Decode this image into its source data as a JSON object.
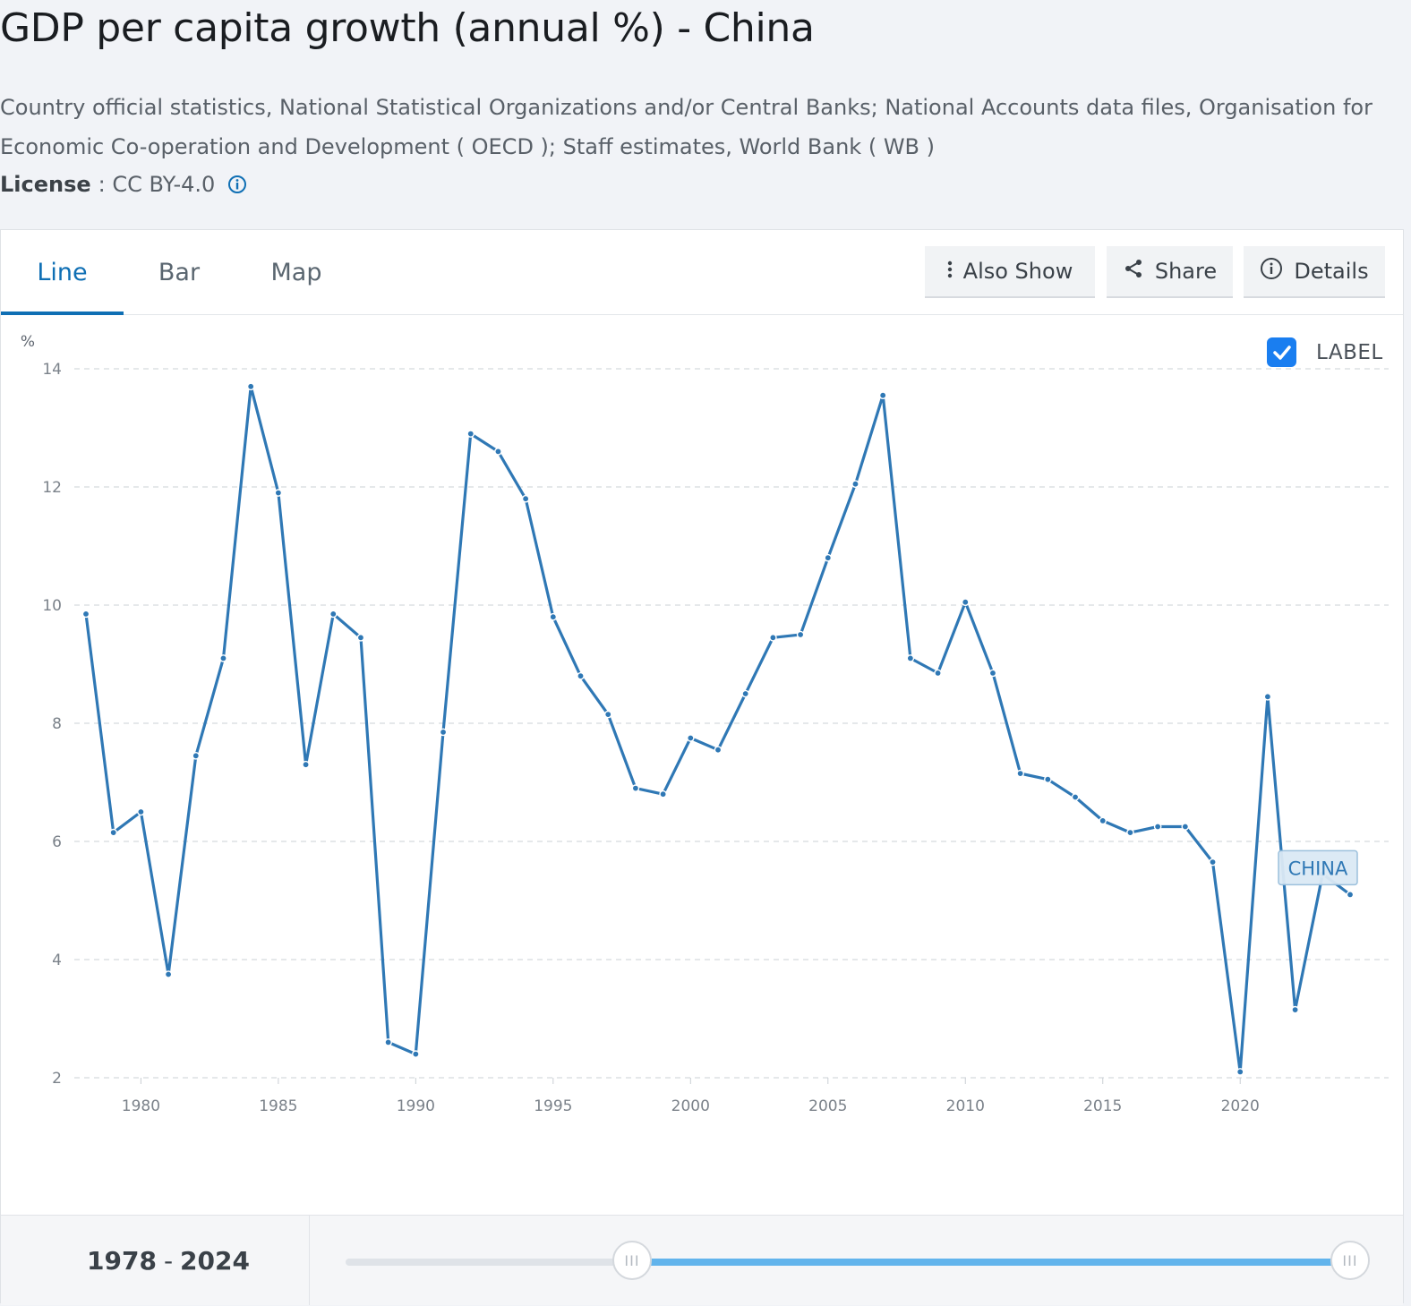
{
  "page": {
    "title": "GDP per capita growth (annual %) - China",
    "source": "Country official statistics, National Statistical Organizations and/or Central Banks; National Accounts data files, Organisation for Economic Co-operation and Development ( OECD ); Staff estimates, World Bank ( WB )",
    "license_label": "License",
    "license_value": ": CC BY-4.0"
  },
  "tabs": [
    {
      "label": "Line",
      "active": true
    },
    {
      "label": "Bar",
      "active": false
    },
    {
      "label": "Map",
      "active": false
    }
  ],
  "toolbar": {
    "also_show": "Also Show",
    "share": "Share",
    "details": "Details"
  },
  "legend": {
    "label_toggle": "LABEL",
    "checked": true,
    "series_tag": "CHINA"
  },
  "range": {
    "start": "1978",
    "separator": "-",
    "end": "2024"
  },
  "colors": {
    "line": "#2f78b5",
    "accent": "#0f6fb4",
    "checkbox": "#1a7ef0",
    "slider_fill": "#62b4ec"
  },
  "chart_data": {
    "type": "line",
    "title": "GDP per capita growth (annual %) - China",
    "ylabel": "%",
    "xlabel": "",
    "ylim": [
      2,
      14
    ],
    "xlim": [
      1978,
      2024
    ],
    "yticks": [
      2,
      4,
      6,
      8,
      10,
      12,
      14
    ],
    "xticks": [
      1980,
      1985,
      1990,
      1995,
      2000,
      2005,
      2010,
      2015,
      2020
    ],
    "grid": true,
    "series": [
      {
        "name": "CHINA",
        "x": [
          1978,
          1979,
          1980,
          1981,
          1982,
          1983,
          1984,
          1985,
          1986,
          1987,
          1988,
          1989,
          1990,
          1991,
          1992,
          1993,
          1994,
          1995,
          1996,
          1997,
          1998,
          1999,
          2000,
          2001,
          2002,
          2003,
          2004,
          2005,
          2006,
          2007,
          2008,
          2009,
          2010,
          2011,
          2012,
          2013,
          2014,
          2015,
          2016,
          2017,
          2018,
          2019,
          2020,
          2021,
          2022,
          2023,
          2024
        ],
        "values": [
          9.85,
          6.15,
          6.5,
          3.75,
          7.45,
          9.1,
          13.7,
          11.9,
          7.3,
          9.85,
          9.45,
          2.6,
          2.4,
          7.85,
          12.9,
          12.6,
          11.8,
          9.8,
          8.8,
          8.15,
          6.9,
          6.8,
          7.75,
          7.55,
          8.5,
          9.45,
          9.5,
          10.8,
          12.05,
          13.55,
          9.1,
          8.85,
          10.05,
          8.85,
          7.15,
          7.05,
          6.75,
          6.35,
          6.15,
          6.25,
          6.25,
          5.65,
          2.1,
          8.45,
          3.15,
          5.45,
          5.1
        ]
      }
    ]
  }
}
